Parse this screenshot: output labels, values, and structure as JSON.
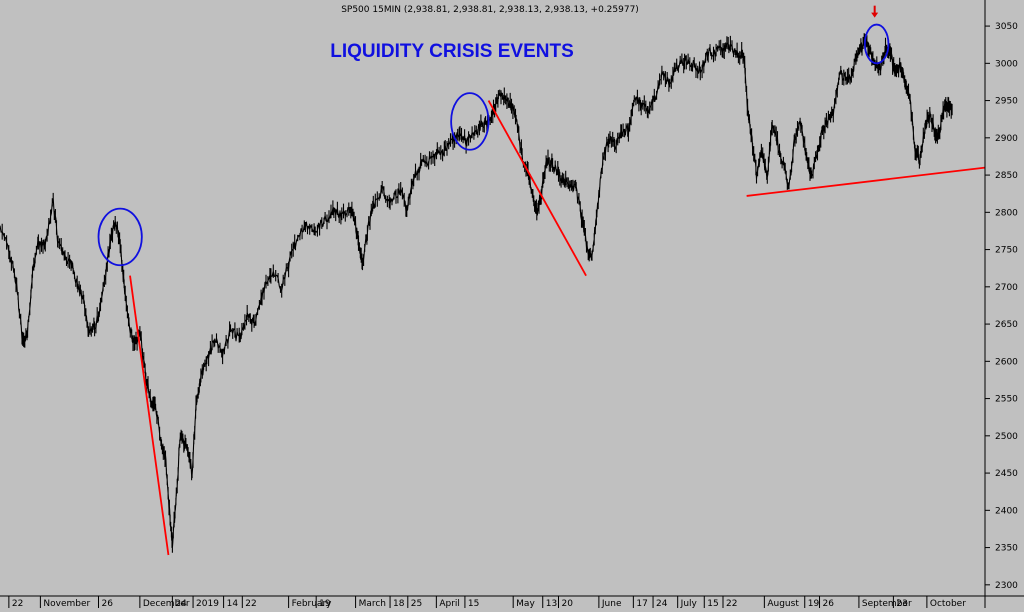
{
  "header": "SP500 15MIN (2,938.81, 2,938.81, 2,938.13, 2,938.13, +0.25977)",
  "annotation_title": "LIQUIDITY CRISIS EVENTS",
  "colors": {
    "background": "#c0c0c0",
    "price": "#000000",
    "trendline": "#ff0000",
    "circle": "#1010e0",
    "title": "#1010e0",
    "marker_arrow": "#e00000"
  },
  "chart_data": {
    "type": "line",
    "title": "SP500 15MIN (2,938.81, 2,938.81, 2,938.13, 2,938.13, +0.25977)",
    "xlabel": "",
    "ylabel": "",
    "ylim": [
      2285,
      3085
    ],
    "y_axis_side": "right",
    "grid": false,
    "legend": "none",
    "yticks": [
      2300,
      2350,
      2400,
      2450,
      2500,
      2550,
      2600,
      2650,
      2700,
      2750,
      2800,
      2850,
      2900,
      2950,
      3000,
      3050
    ],
    "xtick_labels": [
      "22",
      "November",
      "26",
      "December",
      "24",
      "2019",
      "14",
      "22",
      "February",
      "19",
      "March",
      "18",
      "25",
      "April",
      "15",
      "May",
      "13",
      "20",
      "June",
      "17",
      "24",
      "July",
      "15",
      "22",
      "August",
      "19",
      "26",
      "September",
      "23",
      "October"
    ],
    "x_index_range": [
      0,
      100
    ],
    "xtick_index": [
      0.9,
      4.1,
      10.0,
      14.2,
      17.5,
      19.6,
      22.7,
      24.6,
      29.3,
      32.1,
      36.1,
      39.6,
      41.4,
      44.3,
      47.2,
      52.1,
      55.1,
      56.7,
      60.8,
      64.3,
      66.3,
      68.8,
      71.5,
      73.4,
      77.6,
      81.7,
      83.2,
      87.2,
      90.7,
      94.1
    ],
    "series": [
      {
        "values": [
          [
            0,
            2780
          ],
          [
            1.0,
            2745
          ],
          [
            1.7,
            2700
          ],
          [
            2.3,
            2625
          ],
          [
            2.8,
            2640
          ],
          [
            3.3,
            2720
          ],
          [
            3.9,
            2760
          ],
          [
            4.6,
            2755
          ],
          [
            5.4,
            2815
          ],
          [
            5.9,
            2760
          ],
          [
            6.6,
            2740
          ],
          [
            7.3,
            2730
          ],
          [
            7.9,
            2700
          ],
          [
            8.5,
            2680
          ],
          [
            9.0,
            2640
          ],
          [
            9.6,
            2645
          ],
          [
            10.2,
            2670
          ],
          [
            10.8,
            2725
          ],
          [
            11.2,
            2760
          ],
          [
            11.7,
            2790
          ],
          [
            12.2,
            2760
          ],
          [
            12.6,
            2700
          ],
          [
            13.1,
            2650
          ],
          [
            13.7,
            2620
          ],
          [
            14.2,
            2640
          ],
          [
            14.8,
            2580
          ],
          [
            15.3,
            2550
          ],
          [
            15.8,
            2540
          ],
          [
            16.4,
            2490
          ],
          [
            16.8,
            2470
          ],
          [
            17.2,
            2400
          ],
          [
            17.5,
            2350
          ],
          [
            17.9,
            2420
          ],
          [
            18.3,
            2500
          ],
          [
            18.7,
            2490
          ],
          [
            19.1,
            2480
          ],
          [
            19.5,
            2450
          ],
          [
            19.9,
            2540
          ],
          [
            20.4,
            2580
          ],
          [
            21.0,
            2600
          ],
          [
            21.8,
            2630
          ],
          [
            22.6,
            2610
          ],
          [
            23.4,
            2640
          ],
          [
            24.4,
            2630
          ],
          [
            25.1,
            2660
          ],
          [
            25.8,
            2650
          ],
          [
            26.6,
            2690
          ],
          [
            27.5,
            2720
          ],
          [
            28.6,
            2700
          ],
          [
            29.3,
            2730
          ],
          [
            30.0,
            2760
          ],
          [
            31.0,
            2785
          ],
          [
            32.0,
            2775
          ],
          [
            33.0,
            2790
          ],
          [
            33.9,
            2805
          ],
          [
            34.7,
            2795
          ],
          [
            35.5,
            2810
          ],
          [
            36.0,
            2790
          ],
          [
            36.4,
            2760
          ],
          [
            36.8,
            2730
          ],
          [
            37.3,
            2775
          ],
          [
            37.9,
            2810
          ],
          [
            38.8,
            2830
          ],
          [
            39.6,
            2815
          ],
          [
            40.5,
            2830
          ],
          [
            41.3,
            2805
          ],
          [
            42.0,
            2845
          ],
          [
            42.8,
            2865
          ],
          [
            43.6,
            2870
          ],
          [
            44.4,
            2880
          ],
          [
            45.2,
            2885
          ],
          [
            46.0,
            2900
          ],
          [
            46.7,
            2905
          ],
          [
            47.4,
            2895
          ],
          [
            48.2,
            2905
          ],
          [
            48.9,
            2920
          ],
          [
            49.5,
            2920
          ],
          [
            50.1,
            2935
          ],
          [
            50.6,
            2955
          ],
          [
            51.2,
            2955
          ],
          [
            51.8,
            2945
          ],
          [
            52.4,
            2930
          ],
          [
            53.0,
            2875
          ],
          [
            53.6,
            2855
          ],
          [
            54.1,
            2820
          ],
          [
            54.5,
            2800
          ],
          [
            55.0,
            2830
          ],
          [
            55.5,
            2870
          ],
          [
            56.1,
            2865
          ],
          [
            56.7,
            2855
          ],
          [
            57.3,
            2840
          ],
          [
            57.9,
            2840
          ],
          [
            58.5,
            2830
          ],
          [
            59.1,
            2790
          ],
          [
            59.6,
            2750
          ],
          [
            60.1,
            2740
          ],
          [
            60.6,
            2800
          ],
          [
            61.2,
            2870
          ],
          [
            61.8,
            2900
          ],
          [
            62.4,
            2890
          ],
          [
            63.1,
            2905
          ],
          [
            63.8,
            2910
          ],
          [
            64.4,
            2955
          ],
          [
            65.1,
            2945
          ],
          [
            65.8,
            2935
          ],
          [
            66.5,
            2955
          ],
          [
            67.2,
            2985
          ],
          [
            68.0,
            2975
          ],
          [
            68.7,
            2995
          ],
          [
            69.5,
            3005
          ],
          [
            70.3,
            3000
          ],
          [
            71.1,
            2990
          ],
          [
            71.9,
            3015
          ],
          [
            72.7,
            3015
          ],
          [
            73.4,
            3020
          ],
          [
            74.0,
            3025
          ],
          [
            74.7,
            3010
          ],
          [
            75.3,
            3015
          ],
          [
            75.6,
            3000
          ],
          [
            75.9,
            2940
          ],
          [
            76.3,
            2900
          ],
          [
            76.8,
            2850
          ],
          [
            77.3,
            2880
          ],
          [
            77.9,
            2850
          ],
          [
            78.4,
            2920
          ],
          [
            79.0,
            2890
          ],
          [
            79.6,
            2860
          ],
          [
            80.1,
            2835
          ],
          [
            80.7,
            2900
          ],
          [
            81.3,
            2920
          ],
          [
            81.9,
            2870
          ],
          [
            82.4,
            2850
          ],
          [
            83.0,
            2880
          ],
          [
            83.5,
            2910
          ],
          [
            84.1,
            2925
          ],
          [
            84.6,
            2935
          ],
          [
            85.2,
            2985
          ],
          [
            85.9,
            2980
          ],
          [
            86.5,
            2985
          ],
          [
            87.0,
            3010
          ],
          [
            87.4,
            3020
          ],
          [
            87.9,
            3030
          ],
          [
            88.4,
            3015
          ],
          [
            88.9,
            3000
          ],
          [
            89.4,
            2995
          ],
          [
            89.9,
            3020
          ],
          [
            90.4,
            3015
          ],
          [
            90.9,
            2985
          ],
          [
            91.4,
            3000
          ],
          [
            91.9,
            2975
          ],
          [
            92.4,
            2950
          ],
          [
            92.9,
            2880
          ],
          [
            93.4,
            2870
          ],
          [
            93.9,
            2915
          ],
          [
            94.4,
            2930
          ],
          [
            94.9,
            2910
          ],
          [
            95.3,
            2900
          ],
          [
            95.8,
            2940
          ],
          [
            96.3,
            2945
          ],
          [
            96.7,
            2938
          ]
        ]
      }
    ],
    "annotations": {
      "trendlines": [
        {
          "from": [
            13.2,
            2715
          ],
          "to": [
            17.1,
            2340
          ]
        },
        {
          "from": [
            49.6,
            2950
          ],
          "to": [
            59.5,
            2715
          ]
        },
        {
          "from": [
            75.8,
            2822
          ],
          "to": [
            100,
            2860
          ]
        }
      ],
      "circles": [
        {
          "center": [
            12.2,
            2767
          ],
          "rx_index": 2.2,
          "ry_value": 38
        },
        {
          "center": [
            47.7,
            2922
          ],
          "rx_index": 1.9,
          "ry_value": 38
        },
        {
          "center": [
            89.0,
            3026
          ],
          "rx_index": 1.2,
          "ry_value": 26
        }
      ],
      "arrow_marker": {
        "at": [
          88.8,
          3068
        ]
      }
    }
  }
}
